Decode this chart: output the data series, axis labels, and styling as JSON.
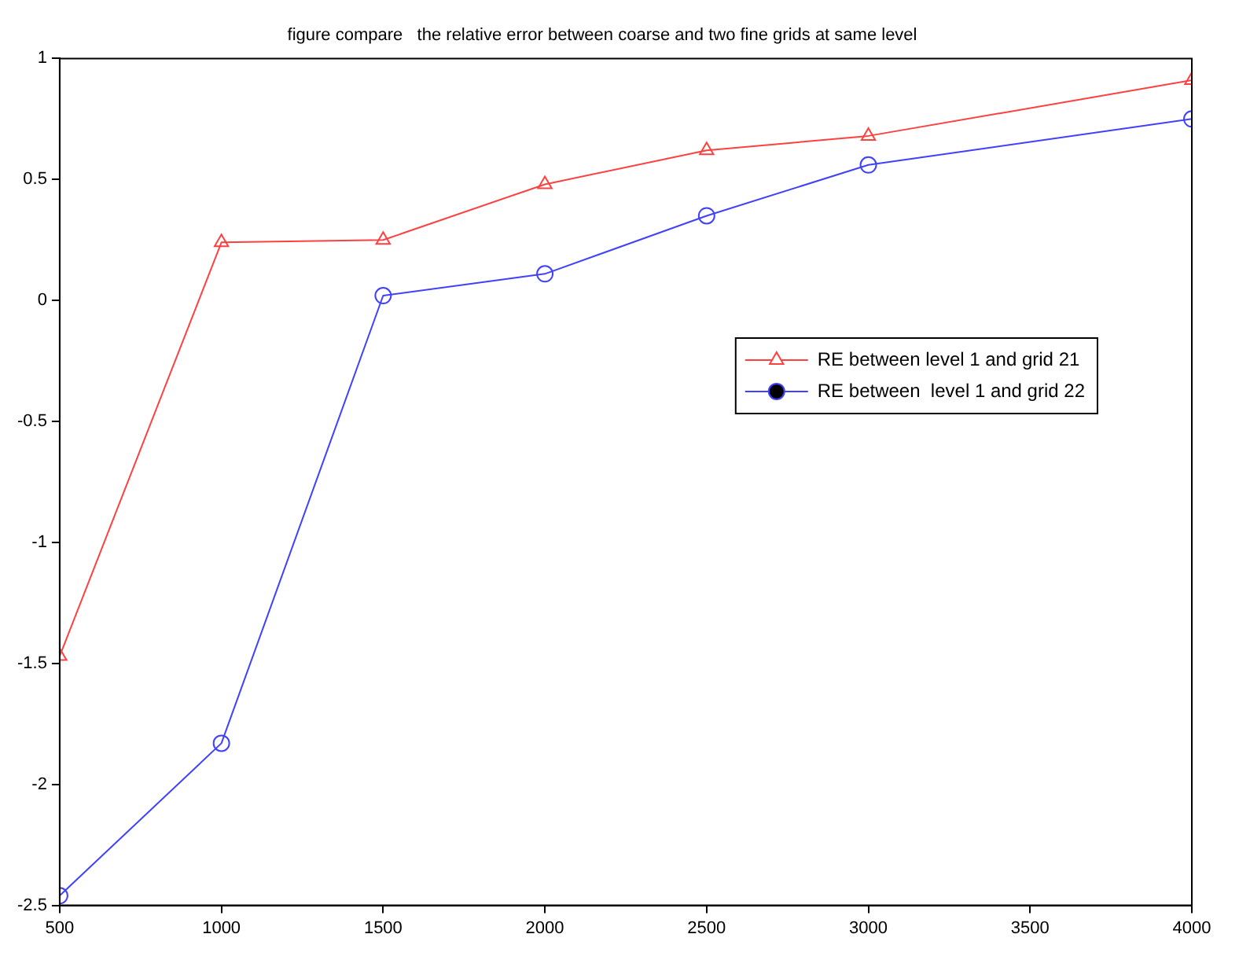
{
  "chart_data": {
    "type": "line",
    "title": "figure compare   the relative error between coarse and two fine grids at same level",
    "x": [
      500,
      1000,
      1500,
      2000,
      2500,
      3000,
      4000
    ],
    "series": [
      {
        "name": "RE between level 1 and grid 21",
        "color": "#ff4040",
        "marker": "triangle",
        "values": [
          -1.47,
          0.24,
          0.25,
          0.48,
          0.62,
          0.68,
          0.91
        ]
      },
      {
        "name": "RE between  level 1 and grid 22",
        "color": "#4040ff",
        "marker": "circle",
        "values": [
          -2.46,
          -1.83,
          0.02,
          0.11,
          0.35,
          0.56,
          0.75
        ]
      }
    ],
    "xlim": [
      500,
      4000
    ],
    "xticks": [
      500,
      1000,
      1500,
      2000,
      2500,
      3000,
      3500,
      4000
    ],
    "ylim": [
      -2.5,
      1
    ],
    "yticks": [
      -2.5,
      -2,
      -1.5,
      -1,
      -0.5,
      0,
      0.5,
      1
    ],
    "grid": false,
    "legend": "right",
    "line_style": "solid"
  }
}
